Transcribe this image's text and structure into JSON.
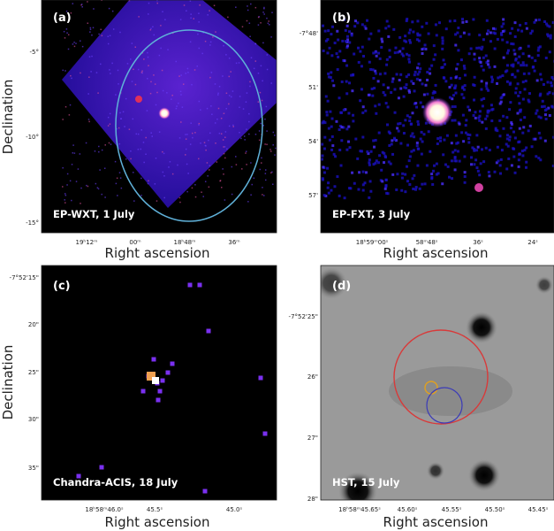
{
  "panels": {
    "a": {
      "label": "(a)",
      "caption": "EP-WXT, 1 July",
      "xlabel": "Right ascension",
      "ylabel": "Declination",
      "xticks": [
        "19ʰ12ᵐ",
        "00ᵐ",
        "18ʰ48ᵐ",
        "36ᵐ"
      ],
      "yticks": [
        "-5°",
        "-10°",
        "-15°"
      ],
      "colormap": "blue-magenta-white",
      "ellipse_color": "#5fb0d8"
    },
    "b": {
      "label": "(b)",
      "caption": "EP-FXT, 3 July",
      "xlabel": "Right ascension",
      "xticks": [
        "18ʰ59ᵐ00ˢ",
        "58ᵐ48ˢ",
        "36ˢ",
        "24ˢ"
      ],
      "yticks": [
        "-7°48'",
        "51'",
        "54'",
        "57'"
      ]
    },
    "c": {
      "label": "(c)",
      "caption": "Chandra-ACIS, 18 July",
      "xlabel": "Right ascension",
      "ylabel": "Declination",
      "xticks": [
        "18ʰ58ᵐ46.0ˢ",
        "45.5ˢ",
        "45.0ˢ"
      ],
      "yticks": [
        "-7°52'15\"",
        "20\"",
        "25\"",
        "30\"",
        "35\""
      ]
    },
    "d": {
      "label": "(d)",
      "caption": "HST, 15 July",
      "xlabel": "Right ascension",
      "xticks": [
        "18ʰ58ᵐ45.65ˢ",
        "45.60ˢ",
        "45.55ˢ",
        "45.50ˢ",
        "45.45ˢ"
      ],
      "yticks": [
        "-7°52'25\"",
        "26\"",
        "27\"",
        "28\""
      ],
      "circle_colors": {
        "large": "#d83a3a",
        "small": "#e0a020",
        "medium": "#3a3ab8"
      }
    }
  }
}
